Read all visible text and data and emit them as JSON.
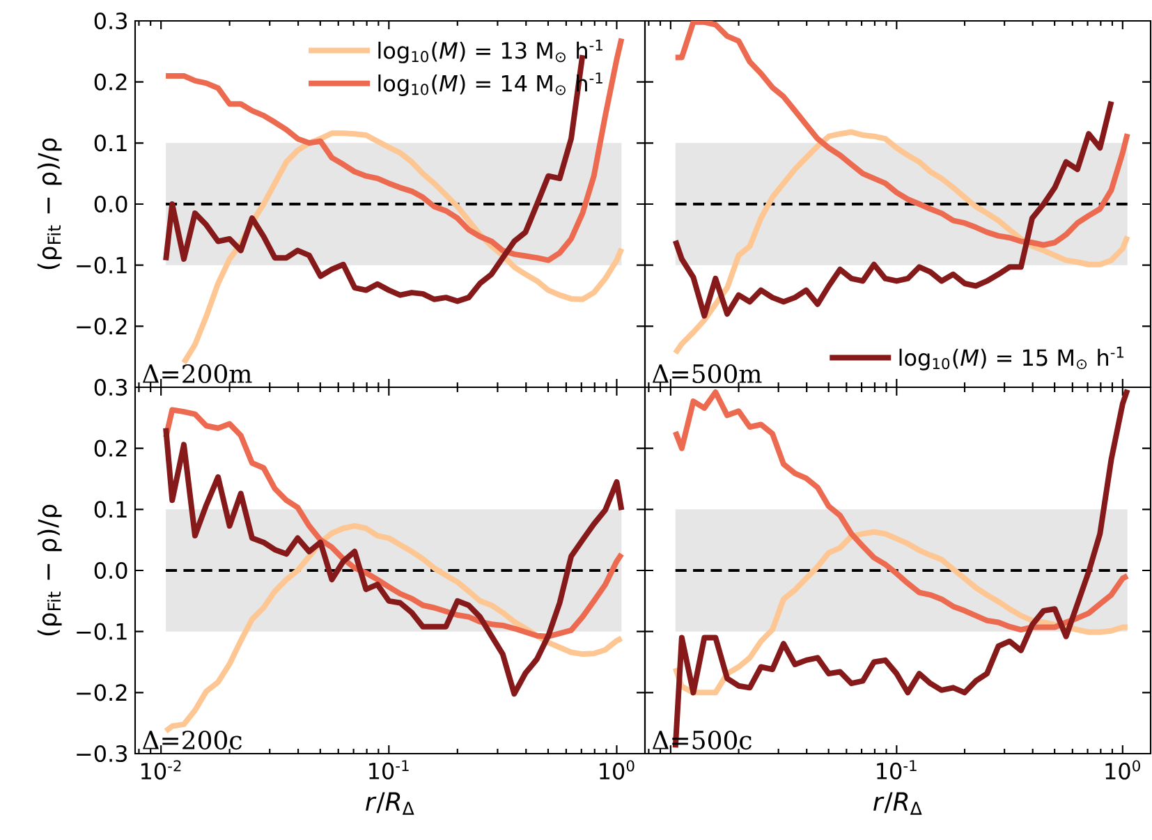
{
  "chart_data": [
    {
      "type": "line",
      "log": "x",
      "ylabel": "(ρ$_{Fit}$ − ρ)/ρ",
      "tick_labels": "y",
      "legend": "top right",
      "xlim": [
        0.0077,
        1.33
      ],
      "ylim": [
        -0.3,
        0.3
      ],
      "xticks": [
        {
          "value": 0.01,
          "label": null
        },
        {
          "value": 0.1,
          "label": null
        },
        {
          "value": 1,
          "label": null
        }
      ],
      "yticks": [
        {
          "value": -0.3,
          "label": null
        },
        {
          "value": -0.2,
          "label": "−0.2"
        },
        {
          "value": -0.1,
          "label": "−0.1"
        },
        {
          "value": 0,
          "label": "0.0"
        },
        0.1,
        0.2,
        0.3
      ],
      "annotations": [
        "Δ=200m"
      ],
      "bands": [
        {
          "axis": "y",
          "from": -0.1,
          "to": 0.1,
          "color": "#e6e6e6"
        }
      ],
      "ref_lines": [
        {
          "axis": "y",
          "value": 0,
          "color": "#000000",
          "line_style": "dashed"
        }
      ],
      "x": [
        0.0105,
        0.0112,
        0.0126,
        0.0141,
        0.0158,
        0.0178,
        0.02,
        0.0224,
        0.0251,
        0.0282,
        0.0316,
        0.0355,
        0.0398,
        0.0447,
        0.0501,
        0.0562,
        0.0631,
        0.0708,
        0.0794,
        0.0891,
        0.1,
        0.112,
        0.126,
        0.141,
        0.158,
        0.178,
        0.2,
        0.224,
        0.251,
        0.282,
        0.316,
        0.355,
        0.398,
        0.447,
        0.501,
        0.562,
        0.631,
        0.708,
        0.794,
        0.891,
        1.0,
        1.05
      ],
      "series": [
        {
          "name": "log$_{10}$(*M*) = 13 M$_{⊙}$ h$^{-1}$",
          "color": "#fdc692",
          "values": [
            null,
            null,
            -0.26,
            -0.23,
            -0.184,
            -0.13,
            -0.09,
            -0.065,
            -0.03,
            0.0,
            0.034,
            0.069,
            0.088,
            0.1,
            0.107,
            0.116,
            0.116,
            0.115,
            0.113,
            0.103,
            0.093,
            0.084,
            0.069,
            0.05,
            0.034,
            0.015,
            -0.004,
            -0.027,
            -0.05,
            -0.069,
            -0.084,
            -0.103,
            -0.115,
            -0.126,
            -0.141,
            -0.149,
            -0.155,
            -0.156,
            -0.145,
            -0.122,
            -0.092,
            -0.073
          ]
        },
        {
          "name": "log$_{10}$(*M*) = 14 M$_{⊙}$ h$^{-1}$",
          "color": "#ec6a50",
          "values": [
            0.21,
            0.21,
            0.21,
            0.202,
            0.198,
            0.19,
            0.164,
            0.164,
            0.153,
            0.145,
            0.134,
            0.122,
            0.107,
            0.1,
            0.103,
            0.076,
            0.065,
            0.053,
            0.046,
            0.042,
            0.034,
            0.027,
            0.021,
            0.011,
            -0.004,
            -0.011,
            -0.023,
            -0.042,
            -0.053,
            -0.061,
            -0.076,
            -0.082,
            -0.085,
            -0.088,
            -0.092,
            -0.08,
            -0.057,
            -0.015,
            0.046,
            0.145,
            0.237,
            0.271
          ]
        },
        {
          "color": "#861a1a",
          "values": [
            -0.092,
            0.0,
            -0.09,
            -0.015,
            -0.034,
            -0.061,
            -0.057,
            -0.076,
            -0.023,
            -0.053,
            -0.088,
            -0.088,
            -0.076,
            -0.084,
            -0.118,
            -0.107,
            -0.099,
            -0.137,
            -0.141,
            -0.131,
            -0.141,
            -0.149,
            -0.145,
            -0.147,
            -0.156,
            -0.153,
            -0.159,
            -0.153,
            -0.13,
            -0.115,
            -0.088,
            -0.061,
            -0.046,
            0.0,
            0.046,
            0.042,
            0.107,
            0.244,
            null,
            null,
            null,
            null
          ]
        }
      ]
    },
    {
      "type": "line",
      "log": "x",
      "tick_labels": false,
      "legend": "bottom right",
      "xlim": [
        0.0077,
        1.33
      ],
      "ylim": [
        -0.3,
        0.3
      ],
      "xticks": [
        {
          "value": 0.01,
          "label": null
        },
        {
          "value": 0.1,
          "label": null
        },
        {
          "value": 1,
          "label": null
        }
      ],
      "yticks": [
        {
          "value": -0.3,
          "label": null
        },
        {
          "value": -0.2,
          "label": null
        },
        {
          "value": -0.1,
          "label": null
        },
        {
          "value": 0,
          "label": null
        },
        {
          "value": 0.1,
          "label": null
        },
        {
          "value": 0.2,
          "label": null
        },
        {
          "value": 0.3,
          "label": null
        }
      ],
      "annotations": [
        "Δ=500m"
      ],
      "bands": [
        {
          "axis": "y",
          "from": -0.1,
          "to": 0.1,
          "color": "#e6e6e6"
        }
      ],
      "ref_lines": [
        {
          "axis": "y",
          "value": 0,
          "color": "#000000",
          "line_style": "dashed"
        }
      ],
      "x": [
        0.0105,
        0.0112,
        0.0126,
        0.0141,
        0.0158,
        0.0178,
        0.02,
        0.0224,
        0.0251,
        0.0282,
        0.0316,
        0.0355,
        0.0398,
        0.0447,
        0.0501,
        0.0562,
        0.0631,
        0.0708,
        0.0794,
        0.0891,
        0.1,
        0.112,
        0.126,
        0.141,
        0.158,
        0.178,
        0.2,
        0.224,
        0.251,
        0.282,
        0.316,
        0.355,
        0.398,
        0.447,
        0.501,
        0.562,
        0.631,
        0.708,
        0.794,
        0.891,
        1.0,
        1.05
      ],
      "series": [
        {
          "color": "#fdc692",
          "values": [
            -0.244,
            -0.229,
            -0.21,
            -0.19,
            -0.164,
            -0.137,
            -0.084,
            -0.069,
            -0.023,
            0.011,
            0.034,
            0.057,
            0.076,
            0.095,
            0.111,
            0.115,
            0.118,
            0.113,
            0.111,
            0.107,
            0.092,
            0.08,
            0.069,
            0.053,
            0.042,
            0.027,
            0.011,
            -0.004,
            -0.015,
            -0.027,
            -0.042,
            -0.057,
            -0.069,
            -0.076,
            -0.084,
            -0.092,
            -0.095,
            -0.099,
            -0.099,
            -0.092,
            -0.073,
            -0.053
          ]
        },
        {
          "color": "#ec6a50",
          "values": [
            0.24,
            0.24,
            0.298,
            0.298,
            0.294,
            0.275,
            0.267,
            0.233,
            0.214,
            0.191,
            0.176,
            0.153,
            0.13,
            0.107,
            0.092,
            0.08,
            0.065,
            0.05,
            0.042,
            0.034,
            0.019,
            0.008,
            0.0,
            -0.008,
            -0.015,
            -0.027,
            -0.031,
            -0.038,
            -0.046,
            -0.052,
            -0.055,
            -0.061,
            -0.063,
            -0.067,
            -0.063,
            -0.05,
            -0.031,
            -0.019,
            -0.008,
            0.023,
            0.084,
            0.115
          ]
        },
        {
          "name": "log$_{10}$(*M*) = 15 M$_{⊙}$ h$^{-1}$",
          "color": "#861a1a",
          "values": [
            -0.06,
            -0.09,
            -0.12,
            -0.183,
            -0.122,
            -0.18,
            -0.149,
            -0.16,
            -0.141,
            -0.153,
            -0.16,
            -0.153,
            -0.141,
            -0.164,
            -0.134,
            -0.107,
            -0.122,
            -0.126,
            -0.099,
            -0.122,
            -0.126,
            -0.122,
            -0.103,
            -0.111,
            -0.126,
            -0.115,
            -0.13,
            -0.134,
            -0.126,
            -0.115,
            -0.103,
            -0.103,
            -0.023,
            0.0,
            0.027,
            0.069,
            0.057,
            0.115,
            0.092,
            0.168,
            null,
            null
          ]
        }
      ]
    },
    {
      "type": "line",
      "log": "x",
      "xlabel": "*r*/*R*$_{Δ}$",
      "ylabel": "(ρ$_{Fit}$ − ρ)/ρ",
      "xlim": [
        0.0077,
        1.33
      ],
      "ylim": [
        -0.3,
        0.3
      ],
      "xticks": [
        {
          "value": 0.01,
          "label": "10$^{-2}$"
        },
        {
          "value": 0.1,
          "label": "10$^{-1}$"
        },
        {
          "value": 1,
          "label": "10$^{0}$"
        }
      ],
      "yticks": [
        {
          "value": -0.3,
          "label": "−0.3"
        },
        {
          "value": -0.2,
          "label": "−0.2"
        },
        {
          "value": -0.1,
          "label": "−0.1"
        },
        {
          "value": 0,
          "label": "0.0"
        },
        0.1,
        0.2,
        0.3
      ],
      "annotations": [
        "Δ=200c"
      ],
      "bands": [
        {
          "axis": "y",
          "from": -0.1,
          "to": 0.1,
          "color": "#e6e6e6"
        }
      ],
      "ref_lines": [
        {
          "axis": "y",
          "value": 0,
          "color": "#000000",
          "line_style": "dashed"
        }
      ],
      "x": [
        0.0105,
        0.0112,
        0.0126,
        0.0141,
        0.0158,
        0.0178,
        0.02,
        0.0224,
        0.0251,
        0.0282,
        0.0316,
        0.0355,
        0.0398,
        0.0447,
        0.0501,
        0.0562,
        0.0631,
        0.0708,
        0.0794,
        0.0891,
        0.1,
        0.112,
        0.126,
        0.141,
        0.158,
        0.178,
        0.2,
        0.224,
        0.251,
        0.282,
        0.316,
        0.355,
        0.398,
        0.447,
        0.501,
        0.562,
        0.631,
        0.708,
        0.794,
        0.891,
        1.0,
        1.05
      ],
      "series": [
        {
          "color": "#fdc692",
          "values": [
            -0.263,
            -0.255,
            -0.252,
            -0.229,
            -0.198,
            -0.183,
            -0.153,
            -0.115,
            -0.08,
            -0.061,
            -0.034,
            -0.015,
            0.0,
            0.023,
            0.046,
            0.061,
            0.069,
            0.073,
            0.069,
            0.057,
            0.053,
            0.042,
            0.031,
            0.019,
            0.004,
            -0.008,
            -0.019,
            -0.034,
            -0.05,
            -0.057,
            -0.069,
            -0.084,
            -0.095,
            -0.107,
            -0.118,
            -0.126,
            -0.134,
            -0.137,
            -0.136,
            -0.13,
            -0.115,
            -0.111
          ]
        },
        {
          "color": "#ec6a50",
          "values": [
            0.218,
            0.263,
            0.26,
            0.256,
            0.237,
            0.233,
            0.24,
            0.221,
            0.176,
            0.168,
            0.134,
            0.115,
            0.103,
            0.073,
            0.05,
            0.038,
            0.019,
            0.004,
            -0.004,
            -0.015,
            -0.027,
            -0.038,
            -0.046,
            -0.057,
            -0.061,
            -0.067,
            -0.073,
            -0.076,
            -0.084,
            -0.088,
            -0.09,
            -0.095,
            -0.101,
            -0.107,
            -0.108,
            -0.103,
            -0.098,
            -0.076,
            -0.05,
            -0.023,
            0.015,
            0.027
          ]
        },
        {
          "color": "#861a1a",
          "values": [
            0.233,
            0.115,
            0.206,
            0.057,
            0.107,
            0.153,
            0.073,
            0.126,
            0.053,
            0.046,
            0.034,
            0.027,
            0.053,
            0.031,
            0.046,
            -0.015,
            0.015,
            0.031,
            -0.031,
            -0.023,
            -0.05,
            -0.053,
            -0.069,
            -0.092,
            -0.092,
            -0.092,
            -0.05,
            -0.057,
            -0.076,
            -0.107,
            -0.137,
            -0.202,
            -0.168,
            -0.145,
            -0.107,
            -0.053,
            0.023,
            0.05,
            0.076,
            0.099,
            0.145,
            0.099
          ]
        }
      ]
    },
    {
      "type": "line",
      "log": "x",
      "xlabel": "*r*/*R*$_{Δ}$",
      "tick_labels": "x",
      "xlim": [
        0.0077,
        1.33
      ],
      "ylim": [
        -0.3,
        0.3
      ],
      "xticks": [
        {
          "value": 0.01,
          "label": null
        },
        {
          "value": 0.1,
          "label": "10$^{-1}$"
        },
        {
          "value": 1,
          "label": "10$^{0}$"
        }
      ],
      "yticks": [
        {
          "value": -0.3,
          "label": null
        },
        {
          "value": -0.2,
          "label": null
        },
        {
          "value": -0.1,
          "label": null
        },
        {
          "value": 0,
          "label": null
        },
        {
          "value": 0.1,
          "label": null
        },
        {
          "value": 0.2,
          "label": null
        },
        {
          "value": 0.3,
          "label": null
        }
      ],
      "annotations": [
        "Δ=500c"
      ],
      "bands": [
        {
          "axis": "y",
          "from": -0.1,
          "to": 0.1,
          "color": "#e6e6e6"
        }
      ],
      "ref_lines": [
        {
          "axis": "y",
          "value": 0,
          "color": "#000000",
          "line_style": "dashed"
        }
      ],
      "x": [
        0.0105,
        0.0112,
        0.0126,
        0.0141,
        0.0158,
        0.0178,
        0.02,
        0.0224,
        0.0251,
        0.0282,
        0.0316,
        0.0355,
        0.0398,
        0.0447,
        0.0501,
        0.0562,
        0.0631,
        0.0708,
        0.0794,
        0.0891,
        0.1,
        0.112,
        0.126,
        0.141,
        0.158,
        0.178,
        0.2,
        0.224,
        0.251,
        0.282,
        0.316,
        0.355,
        0.398,
        0.447,
        0.501,
        0.562,
        0.631,
        0.708,
        0.794,
        0.891,
        1.0,
        1.05
      ],
      "series": [
        {
          "color": "#fdc692",
          "values": [
            -0.16,
            -0.19,
            -0.2,
            -0.2,
            -0.2,
            -0.169,
            -0.158,
            -0.143,
            -0.116,
            -0.097,
            -0.047,
            -0.032,
            -0.013,
            0.006,
            0.029,
            0.037,
            0.056,
            0.06,
            0.063,
            0.06,
            0.052,
            0.044,
            0.033,
            0.025,
            0.018,
            0.002,
            -0.013,
            -0.028,
            -0.04,
            -0.051,
            -0.063,
            -0.074,
            -0.082,
            -0.085,
            -0.089,
            -0.092,
            -0.097,
            -0.101,
            -0.101,
            -0.099,
            -0.093,
            -0.093
          ]
        },
        {
          "color": "#ec6a50",
          "values": [
            0.227,
            0.2,
            0.277,
            0.266,
            0.292,
            0.254,
            0.261,
            0.235,
            0.239,
            0.224,
            0.174,
            0.159,
            0.151,
            0.136,
            0.105,
            0.09,
            0.06,
            0.04,
            0.021,
            0.01,
            -0.005,
            -0.021,
            -0.036,
            -0.04,
            -0.047,
            -0.059,
            -0.066,
            -0.074,
            -0.082,
            -0.085,
            -0.092,
            -0.097,
            -0.093,
            -0.093,
            -0.093,
            -0.085,
            -0.078,
            -0.07,
            -0.055,
            -0.04,
            -0.013,
            -0.009
          ]
        },
        {
          "color": "#861a1a",
          "values": [
            -0.29,
            -0.11,
            -0.2,
            -0.11,
            -0.11,
            -0.177,
            -0.189,
            -0.192,
            -0.158,
            -0.162,
            -0.12,
            -0.154,
            -0.147,
            -0.143,
            -0.169,
            -0.166,
            -0.185,
            -0.181,
            -0.15,
            -0.147,
            -0.169,
            -0.2,
            -0.169,
            -0.185,
            -0.196,
            -0.192,
            -0.2,
            -0.181,
            -0.169,
            -0.124,
            -0.116,
            -0.131,
            -0.089,
            -0.066,
            -0.063,
            -0.108,
            -0.055,
            -0.002,
            0.06,
            0.182,
            0.273,
            0.296
          ]
        }
      ]
    }
  ]
}
